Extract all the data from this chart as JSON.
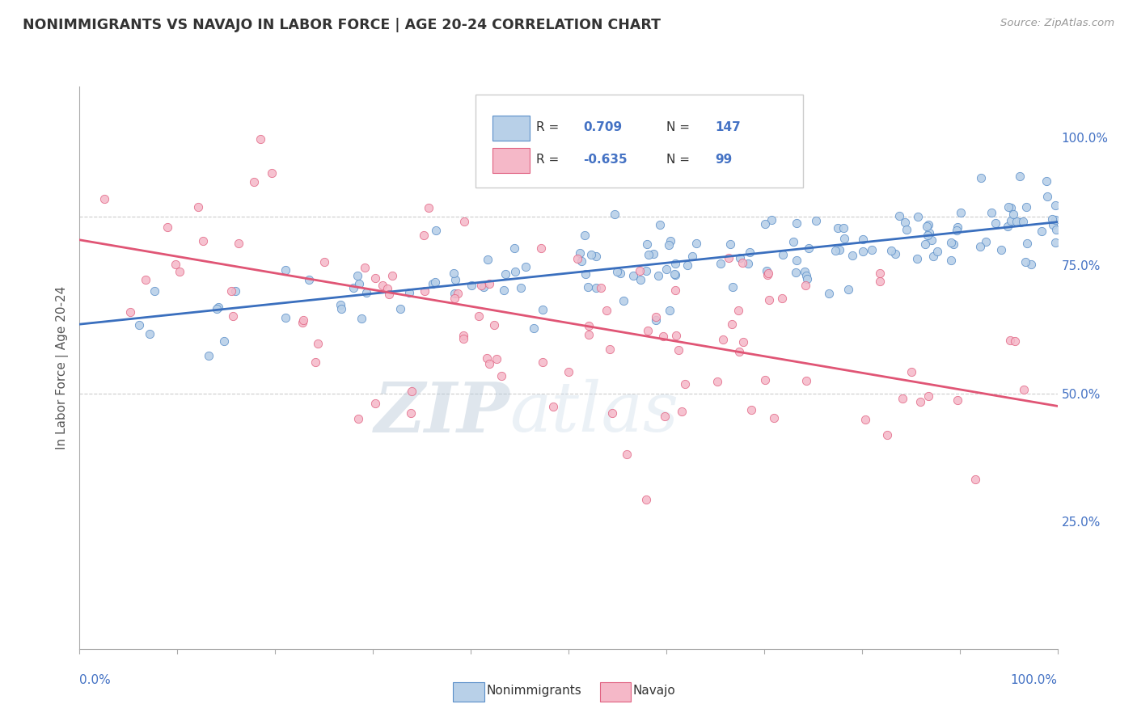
{
  "title": "NONIMMIGRANTS VS NAVAJO IN LABOR FORCE | AGE 20-24 CORRELATION CHART",
  "source_text": "Source: ZipAtlas.com",
  "ylabel": "In Labor Force | Age 20-24",
  "right_yticks": [
    0.25,
    0.5,
    0.75,
    1.0
  ],
  "right_yticklabels": [
    "25.0%",
    "50.0%",
    "75.0%",
    "100.0%"
  ],
  "blue_R": 0.709,
  "blue_N": 147,
  "pink_R": -0.635,
  "pink_N": 99,
  "blue_color": "#b8d0e8",
  "blue_edge_color": "#5b8fc9",
  "blue_line_color": "#3a6fbe",
  "pink_color": "#f5b8c8",
  "pink_edge_color": "#e06080",
  "pink_line_color": "#e05575",
  "legend_blue_label": "Nonimmigrants",
  "legend_pink_label": "Navajo",
  "watermark_zip": "ZIP",
  "watermark_atlas": "atlas",
  "background_color": "#ffffff",
  "xmin": 0.0,
  "xmax": 1.0,
  "ymin": 0.0,
  "ymax": 1.1,
  "blue_line_y0": 0.635,
  "blue_line_y1": 0.835,
  "pink_line_y0": 0.8,
  "pink_line_y1": 0.475,
  "blue_seed": 42,
  "pink_seed": 123
}
